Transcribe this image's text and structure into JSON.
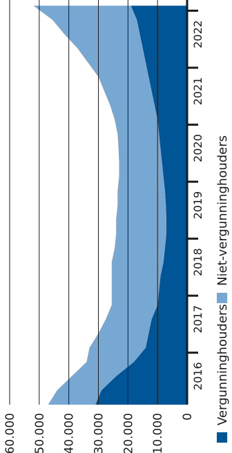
{
  "chart_data": {
    "type": "area",
    "stacked": true,
    "rotated": true,
    "x": [
      2015.5,
      2015.75,
      2016.0,
      2016.25,
      2016.5,
      2016.75,
      2017.0,
      2017.25,
      2017.5,
      2017.75,
      2018.0,
      2018.25,
      2018.5,
      2018.75,
      2019.0,
      2019.25,
      2019.5,
      2019.75,
      2020.0,
      2020.25,
      2020.5,
      2020.75,
      2021.0,
      2021.25,
      2021.5,
      2021.75,
      2022.0,
      2022.25,
      2022.5
    ],
    "x_tick_labels": [
      "2016",
      "2017",
      "2018",
      "2019",
      "2020",
      "2021",
      "2022"
    ],
    "x_tick_values": [
      2016,
      2017,
      2018,
      2019,
      2020,
      2021,
      2022
    ],
    "xlim": [
      2015.5,
      2022.6
    ],
    "y_tick_labels": [
      "0",
      "10.000",
      "20.000",
      "30.000",
      "40.000",
      "50.000",
      "60.000"
    ],
    "y_tick_values": [
      0,
      10000,
      20000,
      30000,
      40000,
      50000,
      60000
    ],
    "ylim": [
      0,
      60000
    ],
    "grid": true,
    "legend_position": "bottom",
    "series": [
      {
        "name": "Vergunninghouders",
        "color": "#005596",
        "values": [
          31000,
          29000,
          24000,
          18000,
          14000,
          13000,
          12000,
          10000,
          9500,
          9000,
          8000,
          7500,
          7000,
          7000,
          7200,
          7500,
          8000,
          8500,
          9000,
          9500,
          10000,
          11000,
          12000,
          13000,
          14000,
          15000,
          16000,
          17000,
          19000
        ]
      },
      {
        "name": "Niet-vergunninghouders",
        "color": "#77a7d3",
        "values": [
          16000,
          15000,
          15000,
          16000,
          19000,
          17000,
          15500,
          15500,
          16000,
          16500,
          17500,
          17000,
          17000,
          17000,
          16300,
          16000,
          15000,
          14500,
          14200,
          14000,
          14500,
          15000,
          16000,
          17000,
          19500,
          22000,
          25500,
          28500,
          33000
        ]
      }
    ]
  }
}
